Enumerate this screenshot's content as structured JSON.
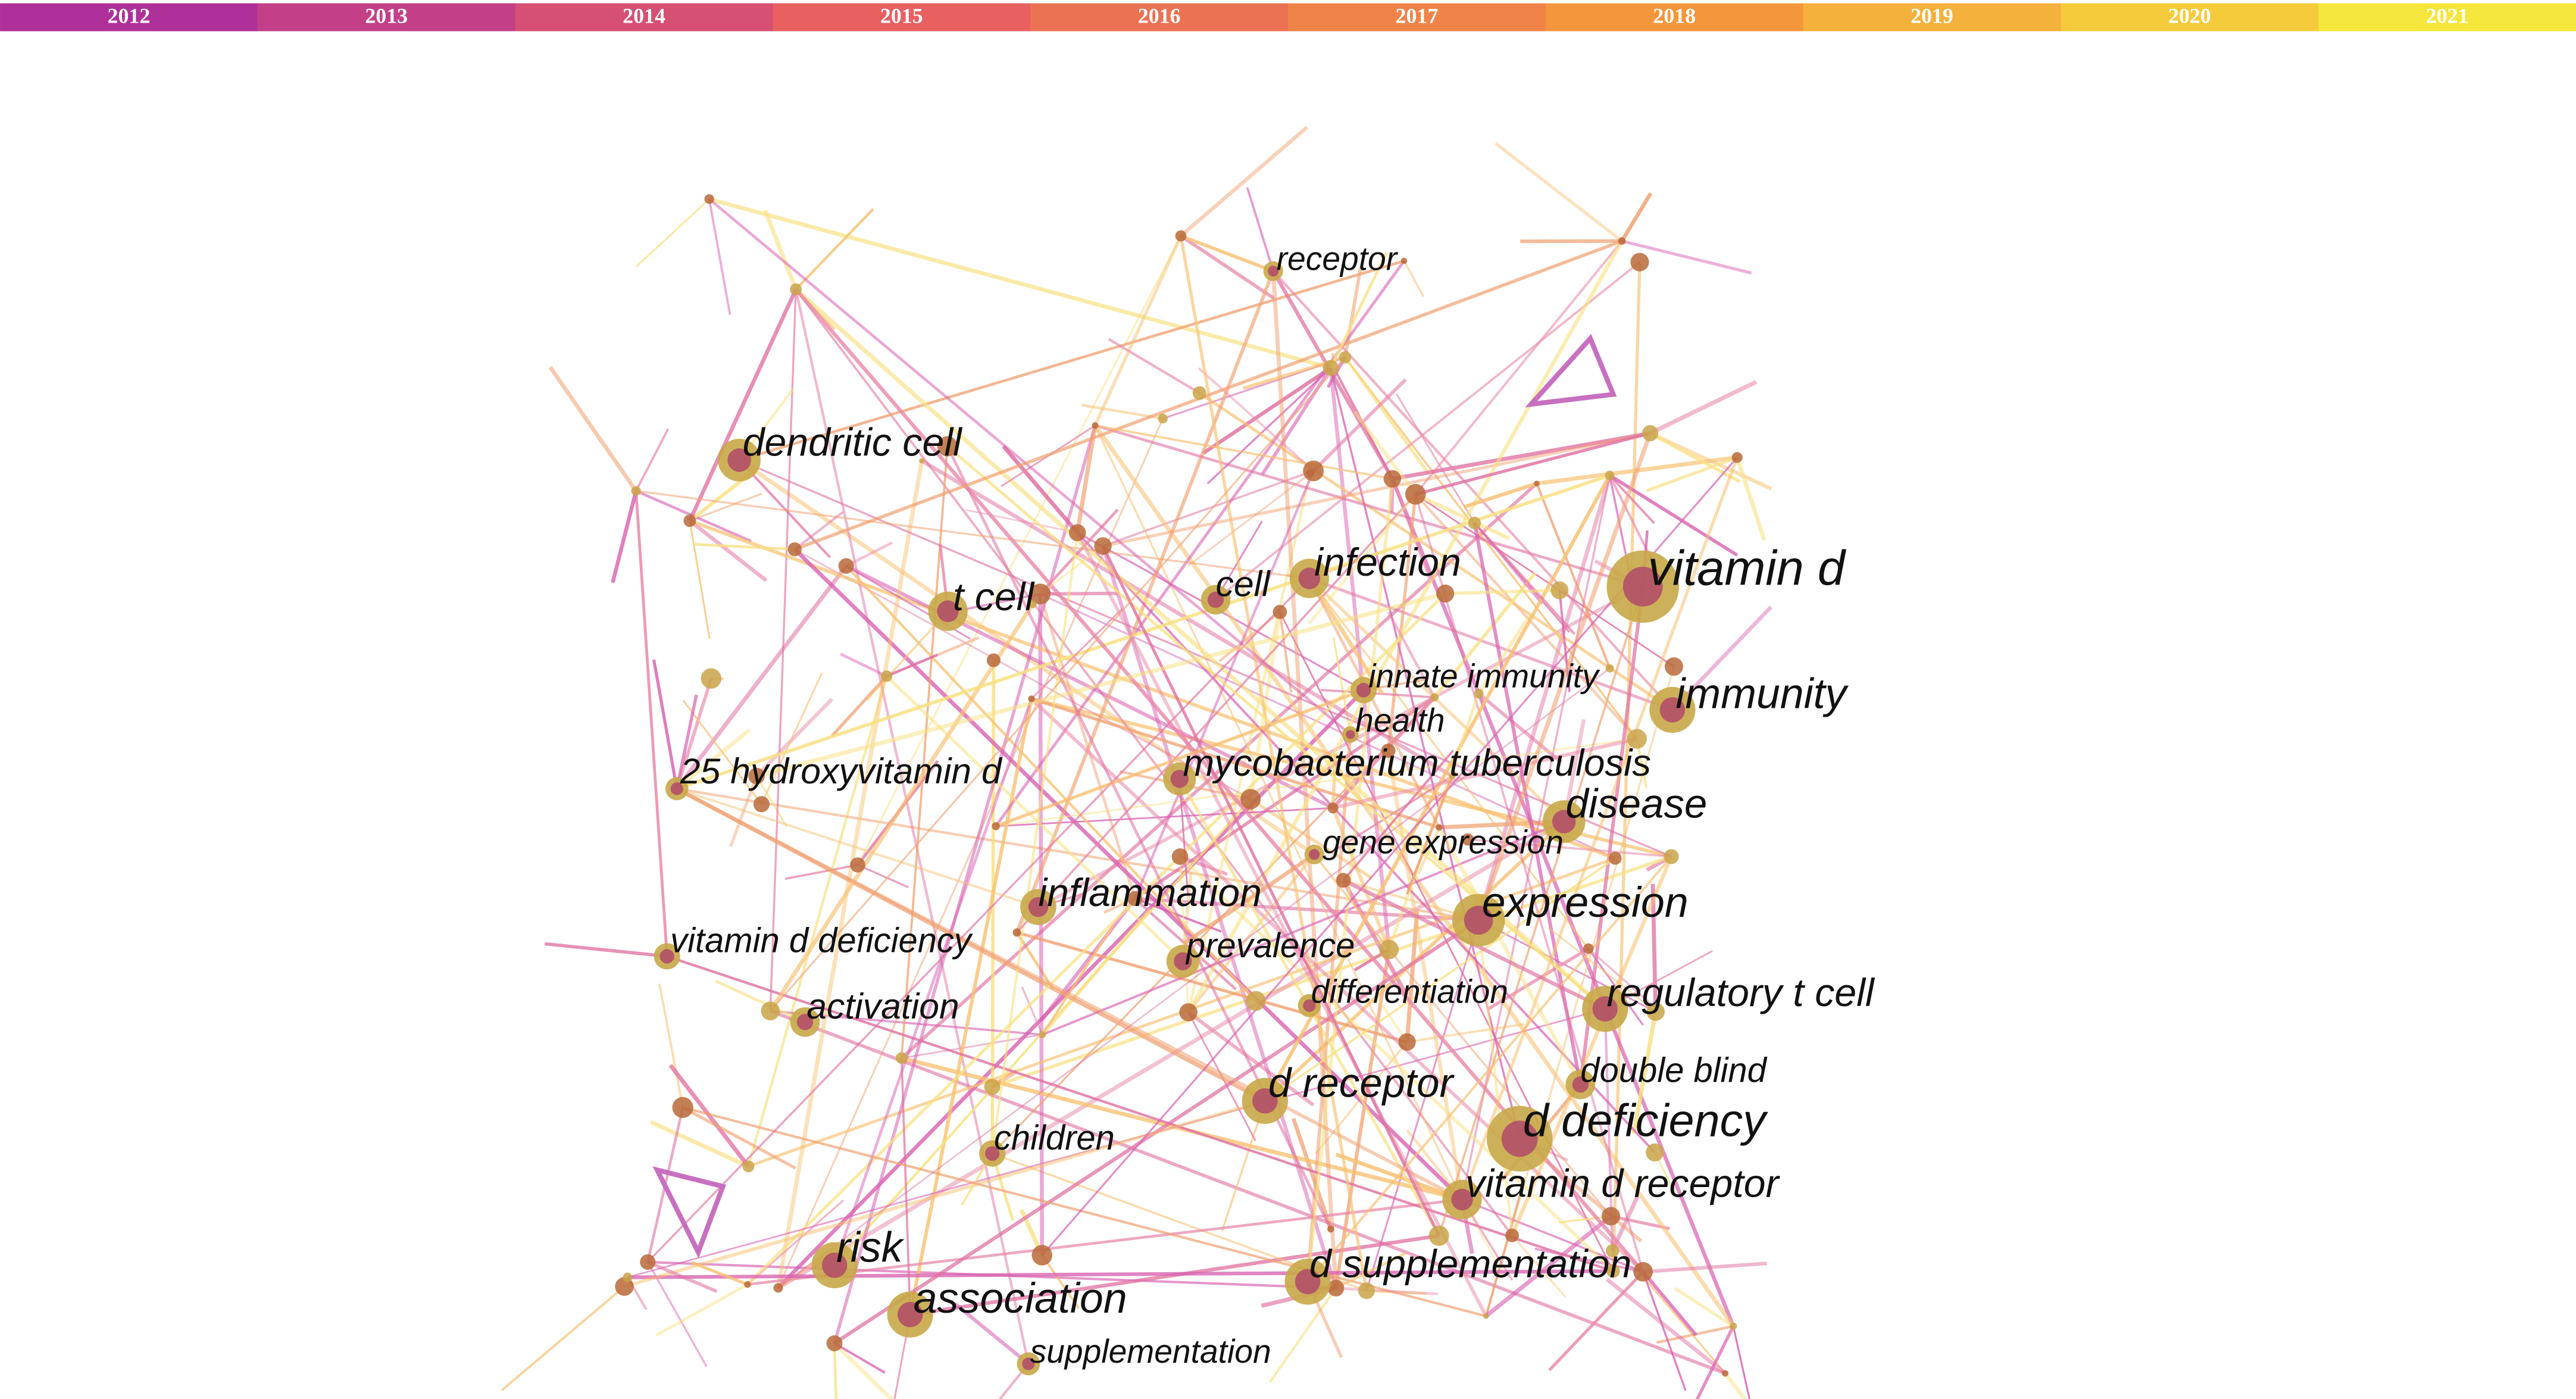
{
  "timeline": {
    "years": [
      "2012",
      "2013",
      "2014",
      "2015",
      "2016",
      "2017",
      "2018",
      "2019",
      "2020",
      "2021"
    ]
  },
  "nodes": [
    "receptor",
    "dendritic cell",
    "t cell",
    "cell",
    "infection",
    "vitamin d",
    "innate immunity",
    "health",
    "immunity",
    "25 hydroxyvitamin d",
    "mycobacterium tuberculosis",
    "disease",
    "gene expression",
    "inflammation",
    "expression",
    "vitamin d deficiency",
    "prevalence",
    "differentiation",
    "regulatory t cell",
    "activation",
    "double blind",
    "d receptor",
    "d deficiency",
    "children",
    "vitamin d receptor",
    "risk",
    "d supplementation",
    "association",
    "supplementation"
  ]
}
